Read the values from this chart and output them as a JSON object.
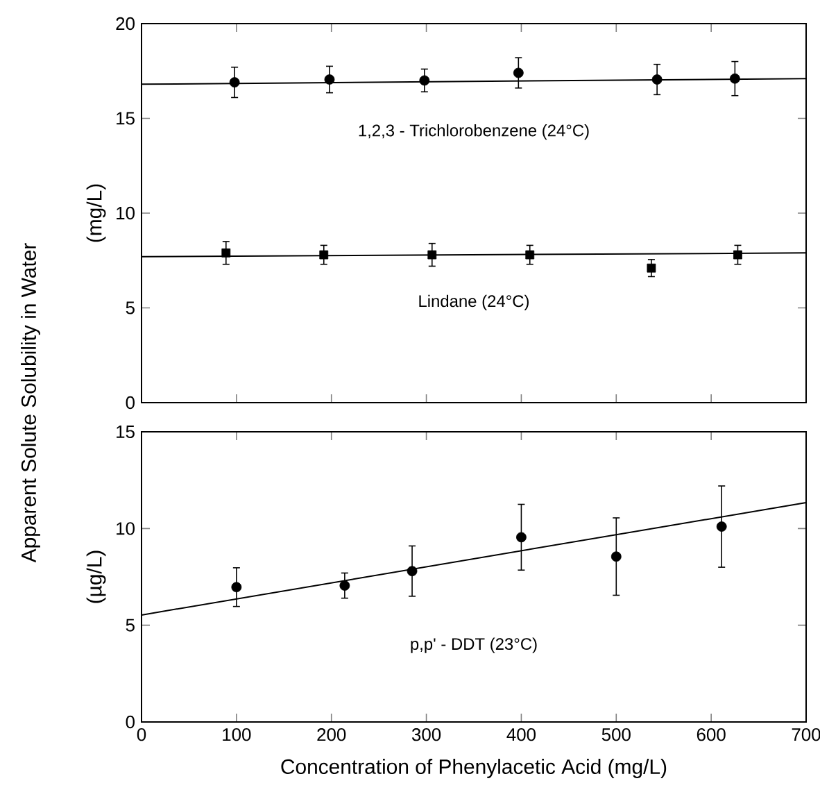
{
  "chart_data": [
    {
      "type": "scatter",
      "ylabel": "(mg/L)",
      "xlim": [
        0,
        700
      ],
      "ylim": [
        0,
        20
      ],
      "xticks": [
        0,
        100,
        200,
        300,
        400,
        500,
        600,
        700
      ],
      "yticks": [
        0,
        5,
        10,
        15,
        20
      ],
      "tick_labels": "y",
      "grid": false,
      "series": [
        {
          "color": "#000000",
          "marker": "circle",
          "x": [
            98,
            198,
            298,
            397,
            543,
            625
          ],
          "values": [
            16.9,
            17.05,
            17.0,
            17.4,
            17.05,
            17.1
          ],
          "errors": [
            0.8,
            0.7,
            0.6,
            0.8,
            0.8,
            0.9
          ]
        },
        {
          "type": "line",
          "name": "1,2,3 - Trichlorobenzene (24°C)",
          "color": "#000000",
          "marker": "none",
          "x": [
            0,
            700
          ],
          "values": [
            16.8,
            17.1
          ]
        },
        {
          "color": "#000000",
          "marker": "square",
          "x": [
            89,
            192,
            306,
            409,
            537,
            628
          ],
          "values": [
            7.9,
            7.8,
            7.8,
            7.8,
            7.1,
            7.8
          ],
          "errors": [
            0.6,
            0.5,
            0.6,
            0.5,
            0.45,
            0.5
          ]
        },
        {
          "type": "line",
          "name": "Lindane (24°C)",
          "color": "#000000",
          "marker": "none",
          "x": [
            0,
            700
          ],
          "values": [
            7.7,
            7.9
          ]
        }
      ],
      "annotations": [
        "Apparent Solute Solubility in Water"
      ]
    },
    {
      "type": "scatter",
      "xlabel": "Concentration of Phenylacetic Acid (mg/L)",
      "ylabel": "(µg/L)",
      "xlim": [
        0,
        700
      ],
      "ylim": [
        0,
        15
      ],
      "xticks": [
        0,
        100,
        200,
        300,
        400,
        500,
        600,
        700
      ],
      "yticks": [
        0,
        5,
        10,
        15
      ],
      "grid": false,
      "series": [
        {
          "color": "#000000",
          "marker": "circle",
          "x": [
            100,
            214,
            285,
            400,
            500,
            611
          ],
          "values": [
            6.97,
            7.05,
            7.8,
            9.55,
            8.55,
            10.1
          ],
          "errors": [
            1.0,
            0.65,
            1.3,
            1.7,
            2.0,
            2.1
          ]
        },
        {
          "type": "line",
          "name": "p,p' - DDT (23°C)",
          "color": "#000000",
          "marker": "none",
          "x": [
            0,
            700
          ],
          "values": [
            5.53,
            11.34
          ]
        }
      ]
    }
  ]
}
